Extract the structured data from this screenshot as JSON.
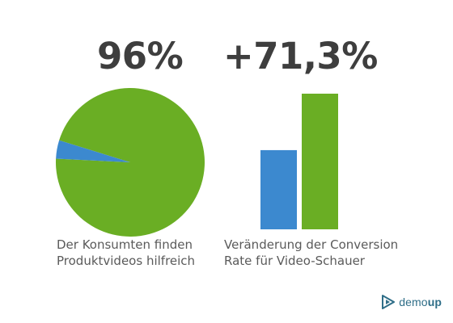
{
  "colors": {
    "green": "#6aae24",
    "blue": "#3c89cf",
    "text_dark": "#3e3e3e",
    "text_caption": "#5a5a5a",
    "logo": "#2f6e88"
  },
  "left_panel": {
    "headline": "96%",
    "caption": "Der Konsumten finden Produktvideos hilfreich"
  },
  "right_panel": {
    "headline": "+71,3%",
    "caption": "Veränderung der Conversion Rate für Video-Schauer"
  },
  "logo": {
    "icon": "play-triangle-icon",
    "text_main": "demo",
    "text_accent": "up"
  },
  "chart_data": [
    {
      "type": "pie",
      "slices": [
        {
          "value": 96,
          "color": "#6aae24"
        },
        {
          "value": 4,
          "color": "#3c89cf"
        }
      ]
    },
    {
      "type": "bar",
      "categories": [
        "",
        ""
      ],
      "values": [
        100,
        171.3
      ],
      "colors": [
        "#3c89cf",
        "#6aae24"
      ]
    }
  ]
}
